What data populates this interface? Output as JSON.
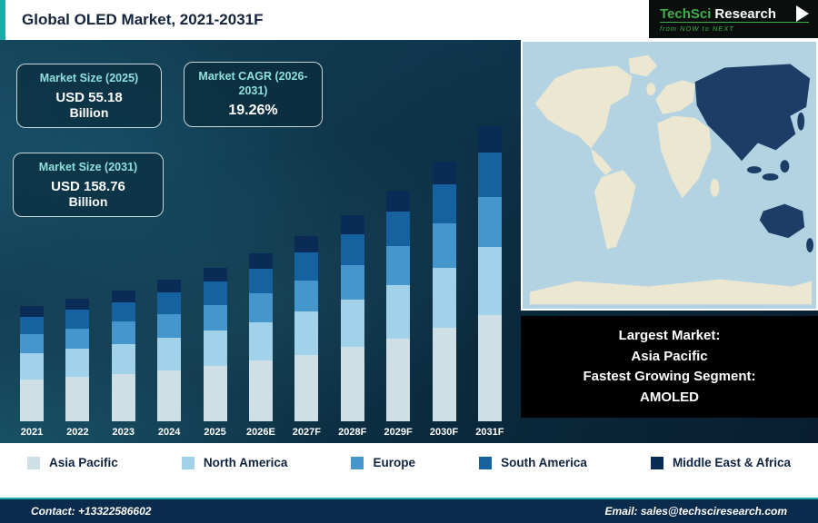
{
  "header": {
    "title": "Global OLED Market, 2021-2031F",
    "logo": {
      "part1": "TechSci",
      "part2": "Research",
      "tagline": "from NOW to NEXT"
    }
  },
  "stats": [
    {
      "label": "Market Size (2025)",
      "value": "USD 55.18",
      "value2": "Billion"
    },
    {
      "label": "Market CAGR (2026-2031)",
      "value": "19.26%",
      "value2": ""
    },
    {
      "label": "Market Size (2031)",
      "value": "USD 158.76",
      "value2": "Billion"
    }
  ],
  "chart_data": {
    "type": "bar",
    "stacked": true,
    "title": "Global OLED Market, 2021-2031F",
    "units": "USD Billion",
    "categories": [
      "2021",
      "2022",
      "2023",
      "2024",
      "2025",
      "2026E",
      "2027F",
      "2028F",
      "2029F",
      "2030F",
      "2031F"
    ],
    "totals": [
      27.3,
      32.5,
      38.8,
      46.3,
      55.18,
      65.8,
      78.5,
      93.5,
      111.8,
      133.2,
      158.76
    ],
    "series": [
      {
        "name": "Asia Pacific",
        "color": "#cfdfe6",
        "values": [
          9.8,
          11.7,
          14.0,
          16.7,
          19.9,
          23.7,
          28.3,
          33.7,
          40.2,
          48.0,
          57.2
        ]
      },
      {
        "name": "North America",
        "color": "#a2d2ea",
        "values": [
          6.3,
          7.5,
          8.9,
          10.6,
          12.7,
          15.1,
          18.1,
          21.5,
          25.7,
          30.6,
          36.5
        ]
      },
      {
        "name": "Europe",
        "color": "#4596cc",
        "values": [
          4.6,
          5.5,
          6.6,
          7.9,
          9.4,
          11.2,
          13.3,
          15.9,
          19.0,
          22.6,
          27.0
        ]
      },
      {
        "name": "South America",
        "color": "#16619f",
        "values": [
          4.1,
          4.9,
          5.8,
          6.9,
          8.3,
          9.9,
          11.8,
          14.0,
          16.8,
          20.0,
          23.8
        ]
      },
      {
        "name": "Middle East & Africa",
        "color": "#0a2b55",
        "values": [
          2.5,
          2.9,
          3.5,
          4.2,
          5.0,
          5.9,
          7.1,
          8.4,
          10.1,
          12.0,
          14.3
        ]
      }
    ],
    "legend_position": "bottom",
    "grid": false
  },
  "map": {
    "ocean_color": "#b3d3e2",
    "land_color": "#ebe7d1",
    "highlight_color": "#1d3c66"
  },
  "map_note": {
    "lines": [
      "Largest Market:",
      "Asia Pacific",
      "Fastest Growing Segment:",
      "AMOLED"
    ]
  },
  "footer": {
    "contact": "Contact: +13322586602",
    "email": "Email: sales@techsciresearch.com"
  }
}
